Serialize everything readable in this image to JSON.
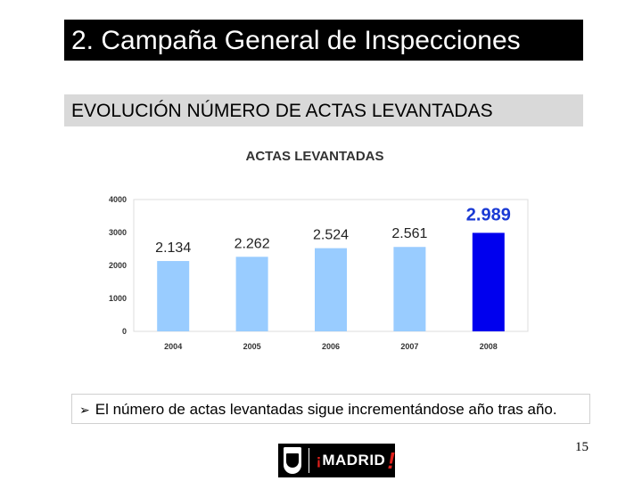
{
  "header": {
    "title": "2. Campaña General de Inspecciones",
    "subtitle": "EVOLUCIÓN NÚMERO DE ACTAS LEVANTADAS"
  },
  "chart_data": {
    "type": "bar",
    "title": "ACTAS LEVANTADAS",
    "categories": [
      "2004",
      "2005",
      "2006",
      "2007",
      "2008"
    ],
    "values": [
      2134,
      2262,
      2524,
      2561,
      2989
    ],
    "value_labels": [
      "2.134",
      "2.262",
      "2.524",
      "2.561",
      "2.989"
    ],
    "yticks": [
      "0",
      "1000",
      "2000",
      "3000",
      "4000"
    ],
    "ylim": [
      0,
      4000
    ],
    "xlabel": "",
    "ylabel": "",
    "grid": false,
    "colors": {
      "normal": "#99ccff",
      "highlight": "#0000ee",
      "highlight_label": "#1a3ad4"
    },
    "highlight_index": 4
  },
  "note": {
    "text": "El número de actas levantadas sigue incrementándose año tras año."
  },
  "footer": {
    "page_number": "15",
    "logo_text": "MADRID"
  }
}
